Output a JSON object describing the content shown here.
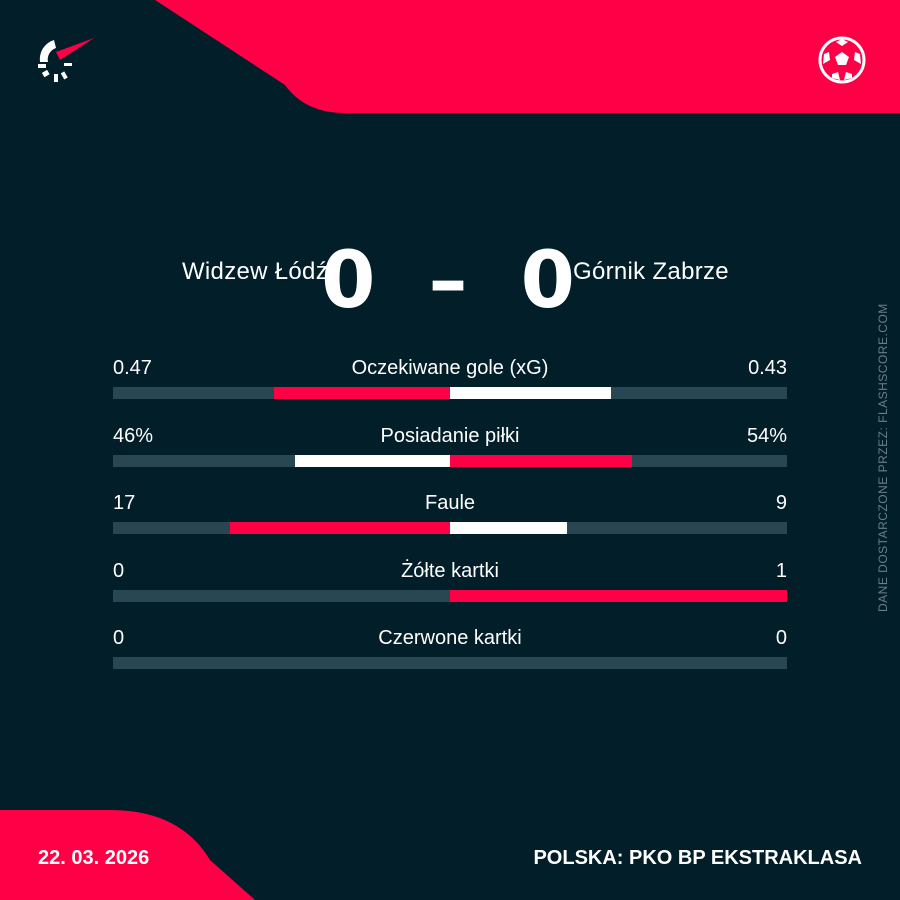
{
  "colors": {
    "background": "#011e29",
    "accent": "#ff0046",
    "track": "#284752",
    "neutral": "#ffffff"
  },
  "match": {
    "home": "Widzew Łódź",
    "away": "Górnik Zabrze",
    "home_score": "0",
    "separator": "–",
    "away_score": "0"
  },
  "stats": [
    {
      "label": "Oczekiwane gole (xG)",
      "home": "0.47",
      "away": "0.43",
      "home_value": 0.47,
      "away_value": 0.43
    },
    {
      "label": "Posiadanie piłki",
      "home": "46%",
      "away": "54%",
      "home_value": 46,
      "away_value": 54
    },
    {
      "label": "Faule",
      "home": "17",
      "away": "9",
      "home_value": 17,
      "away_value": 9
    },
    {
      "label": "Żółte kartki",
      "home": "0",
      "away": "1",
      "home_value": 0,
      "away_value": 1
    },
    {
      "label": "Czerwone kartki",
      "home": "0",
      "away": "0",
      "home_value": 0,
      "away_value": 0
    }
  ],
  "source": "DANE DOSTARCZONE PRZEZ: FLASHSCORE.COM",
  "footer": {
    "date": "22. 03. 2026",
    "league": "POLSKA: PKO BP EKSTRAKLASA"
  },
  "icons": {
    "logo": "flashscore-logo",
    "sport": "football-icon"
  }
}
